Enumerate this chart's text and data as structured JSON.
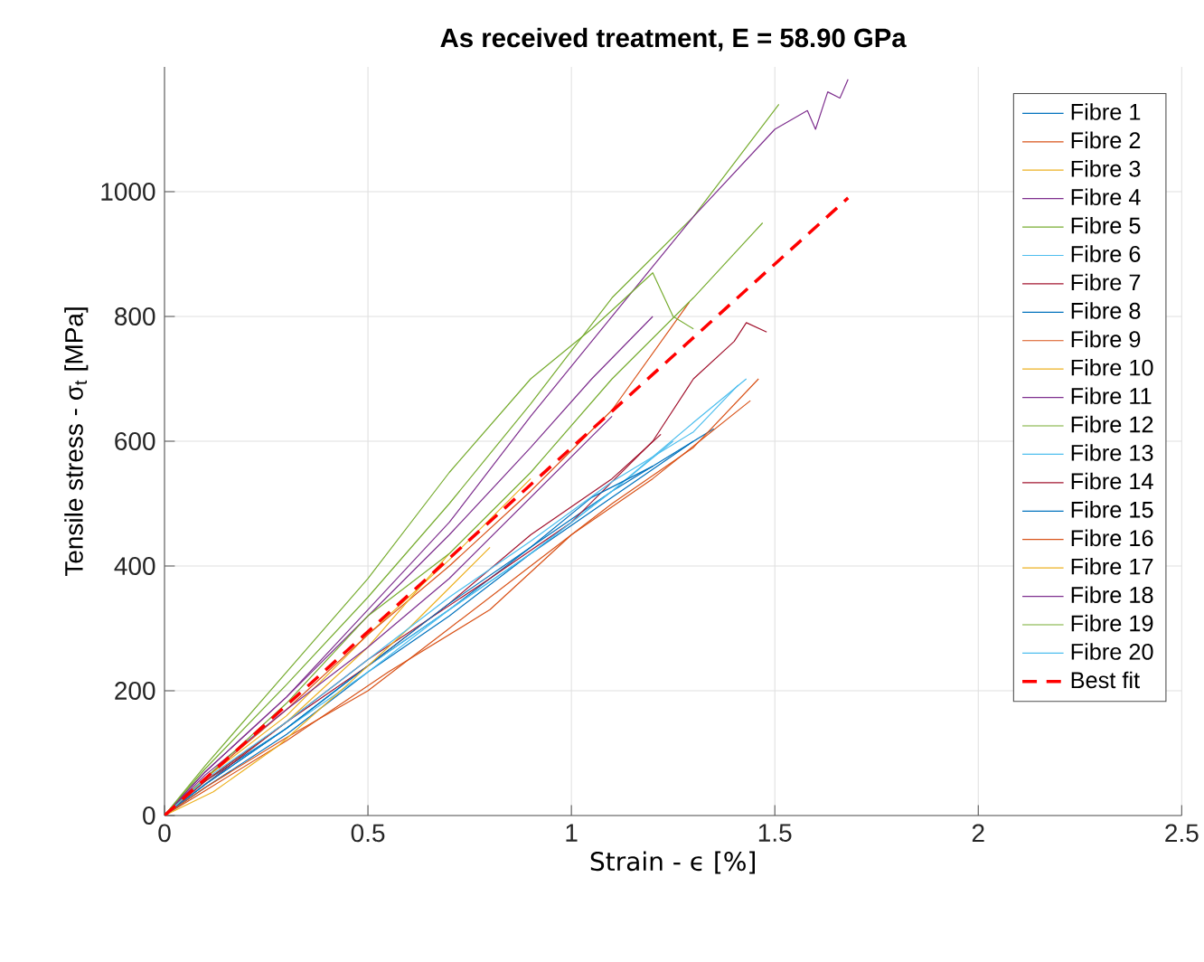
{
  "chart_data": {
    "type": "line",
    "title": "As received treatment, E = 58.90 GPa",
    "xlabel": "Strain - ϵ [%]",
    "ylabel": "Tensile stress - σ$_{t}$ [MPa]",
    "xlim": [
      0,
      2.5
    ],
    "ylim": [
      0,
      1200
    ],
    "xticks": [
      0,
      0.5,
      1,
      1.5,
      2,
      2.5
    ],
    "yticks": [
      0,
      200,
      400,
      600,
      800,
      1000
    ],
    "grid": true,
    "legend": "top right",
    "marker": "none",
    "series": [
      {
        "name": "Fibre 1",
        "color": "#0072bd",
        "x": [
          0,
          0.1,
          0.3,
          0.5,
          0.7,
          0.9,
          1.1,
          1.35
        ],
        "values": [
          0,
          55,
          140,
          240,
          330,
          430,
          520,
          620
        ]
      },
      {
        "name": "Fibre 2",
        "color": "#d95319",
        "x": [
          0,
          0.1,
          0.3,
          0.55,
          0.8,
          1.0,
          1.2,
          1.44
        ],
        "values": [
          0,
          40,
          120,
          230,
          330,
          450,
          540,
          665
        ]
      },
      {
        "name": "Fibre 3",
        "color": "#edb120",
        "x": [
          0,
          0.1,
          0.3,
          0.5,
          0.7,
          0.9
        ],
        "values": [
          0,
          60,
          160,
          290,
          410,
          540
        ]
      },
      {
        "name": "Fibre 4",
        "color": "#7e2f8e",
        "x": [
          0,
          0.1,
          0.3,
          0.5,
          0.7,
          0.9,
          1.05,
          1.2
        ],
        "values": [
          0,
          70,
          190,
          320,
          450,
          590,
          700,
          800
        ]
      },
      {
        "name": "Fibre 5",
        "color": "#77ac30",
        "x": [
          0,
          0.1,
          0.3,
          0.5,
          0.7,
          0.9,
          1.1,
          1.3,
          1.51
        ],
        "values": [
          0,
          75,
          210,
          350,
          500,
          660,
          830,
          960,
          1140
        ]
      },
      {
        "name": "Fibre 6",
        "color": "#4dbeee",
        "x": [
          0,
          0.1,
          0.3,
          0.5,
          0.7,
          0.9,
          1.1,
          1.25
        ],
        "values": [
          0,
          50,
          140,
          240,
          330,
          420,
          520,
          600
        ]
      },
      {
        "name": "Fibre 7",
        "color": "#a2142f",
        "x": [
          0,
          0.1,
          0.3,
          0.5,
          0.8,
          1.0,
          1.2,
          1.3,
          1.4,
          1.43,
          1.48
        ],
        "values": [
          0,
          50,
          150,
          250,
          380,
          470,
          600,
          700,
          760,
          790,
          775
        ]
      },
      {
        "name": "Fibre 8",
        "color": "#0072bd",
        "x": [
          0,
          0.1,
          0.3,
          0.5,
          0.7,
          0.9,
          1.1,
          1.3
        ],
        "values": [
          0,
          45,
          130,
          230,
          320,
          420,
          510,
          600
        ]
      },
      {
        "name": "Fibre 9",
        "color": "#d95319",
        "x": [
          0,
          0.1,
          0.3,
          0.5,
          0.7,
          0.9,
          1.1,
          1.29
        ],
        "values": [
          0,
          60,
          170,
          290,
          400,
          520,
          650,
          823
        ]
      },
      {
        "name": "Fibre 10",
        "color": "#edb120",
        "x": [
          0,
          0.1,
          0.3,
          0.5,
          0.7
        ],
        "values": [
          0,
          55,
          150,
          270,
          420
        ]
      },
      {
        "name": "Fibre 11",
        "color": "#7e2f8e",
        "x": [
          0,
          0.1,
          0.3,
          0.5,
          0.7,
          0.9,
          1.1
        ],
        "values": [
          0,
          65,
          170,
          270,
          380,
          510,
          640
        ]
      },
      {
        "name": "Fibre 12",
        "color": "#77ac30",
        "x": [
          0,
          0.1,
          0.3,
          0.5,
          0.7,
          0.9,
          1.1,
          1.3,
          1.47
        ],
        "values": [
          0,
          60,
          180,
          320,
          420,
          550,
          700,
          830,
          950
        ]
      },
      {
        "name": "Fibre 13",
        "color": "#4dbeee",
        "x": [
          0,
          0.1,
          0.3,
          0.5,
          0.7,
          0.9,
          1.1,
          1.3,
          1.43
        ],
        "values": [
          0,
          50,
          140,
          230,
          330,
          420,
          520,
          630,
          700
        ]
      },
      {
        "name": "Fibre 14",
        "color": "#a2142f",
        "x": [
          0,
          0.1,
          0.3,
          0.5,
          0.7,
          0.9,
          1.1,
          1.22
        ],
        "values": [
          0,
          55,
          150,
          240,
          340,
          450,
          540,
          611
        ]
      },
      {
        "name": "Fibre 15",
        "color": "#0072bd",
        "x": [
          0,
          0.1,
          0.3,
          0.5,
          0.7,
          0.9,
          1.05,
          1.2
        ],
        "values": [
          0,
          50,
          140,
          240,
          340,
          430,
          510,
          560
        ]
      },
      {
        "name": "Fibre 16",
        "color": "#d95319",
        "x": [
          0,
          0.1,
          0.3,
          0.5,
          0.7,
          0.9,
          1.1,
          1.3,
          1.46
        ],
        "values": [
          0,
          45,
          125,
          200,
          300,
          400,
          500,
          590,
          700
        ]
      },
      {
        "name": "Fibre 17",
        "color": "#edb120",
        "x": [
          0,
          0.12,
          0.28,
          0.45,
          0.6,
          0.8
        ],
        "values": [
          0,
          38,
          112,
          210,
          300,
          430
        ]
      },
      {
        "name": "Fibre 18",
        "color": "#7e2f8e",
        "x": [
          0,
          0.1,
          0.3,
          0.5,
          0.7,
          0.9,
          1.1,
          1.3,
          1.5,
          1.58,
          1.6,
          1.63,
          1.66,
          1.68
        ],
        "values": [
          0,
          70,
          190,
          330,
          470,
          640,
          800,
          960,
          1100,
          1130,
          1100,
          1160,
          1150,
          1180
        ]
      },
      {
        "name": "Fibre 19",
        "color": "#77ac30",
        "x": [
          0,
          0.1,
          0.3,
          0.5,
          0.7,
          0.9,
          1.05,
          1.2,
          1.25,
          1.3
        ],
        "values": [
          0,
          80,
          230,
          380,
          550,
          700,
          780,
          870,
          800,
          780
        ]
      },
      {
        "name": "Fibre 20",
        "color": "#4dbeee",
        "x": [
          0,
          0.1,
          0.3,
          0.5,
          0.7,
          0.9,
          1.1,
          1.3,
          1.41
        ],
        "values": [
          0,
          58,
          150,
          250,
          350,
          440,
          535,
          615,
          690
        ]
      },
      {
        "name": "Best fit",
        "color": "#ff0000",
        "line_style": "dashed",
        "x": [
          0,
          1.68
        ],
        "values": [
          0,
          990
        ]
      }
    ]
  }
}
